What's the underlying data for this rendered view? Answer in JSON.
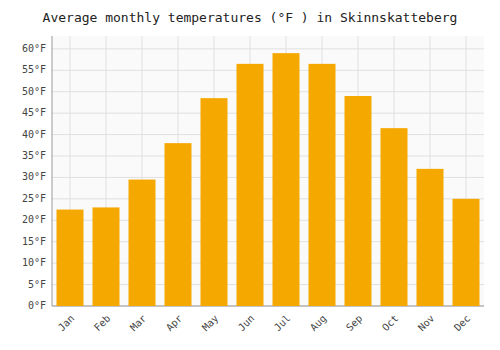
{
  "chart_data": {
    "type": "bar",
    "title": "Average monthly temperatures (°F ) in Skinnskatteberg",
    "categories": [
      "Jan",
      "Feb",
      "Mar",
      "Apr",
      "May",
      "Jun",
      "Jul",
      "Aug",
      "Sep",
      "Oct",
      "Nov",
      "Dec"
    ],
    "values": [
      22.5,
      23.0,
      29.5,
      38.0,
      48.5,
      56.5,
      59.0,
      56.5,
      49.0,
      41.5,
      32.0,
      25.0
    ],
    "color": "#F5A800",
    "ylim": [
      0,
      63
    ],
    "yticks": [
      {
        "value": 0,
        "label": "0°F"
      },
      {
        "value": 5,
        "label": "5°F"
      },
      {
        "value": 10,
        "label": "10°F"
      },
      {
        "value": 15,
        "label": "15°F"
      },
      {
        "value": 20,
        "label": "20°F"
      },
      {
        "value": 25,
        "label": "25°F"
      },
      {
        "value": 30,
        "label": "30°F"
      },
      {
        "value": 35,
        "label": "35°F"
      },
      {
        "value": 40,
        "label": "40°F"
      },
      {
        "value": 45,
        "label": "45°F"
      },
      {
        "value": 50,
        "label": "50°F"
      },
      {
        "value": 55,
        "label": "55°F"
      },
      {
        "value": 60,
        "label": "60°F"
      }
    ],
    "grid": true
  }
}
